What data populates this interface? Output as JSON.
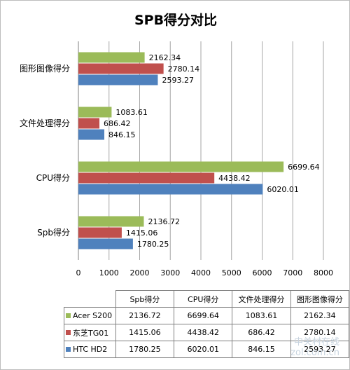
{
  "chart_data": {
    "type": "bar",
    "orientation": "horizontal",
    "title": "SPB得分对比",
    "categories": [
      "Spb得分",
      "CPU得分",
      "文件处理得分",
      "图形图像得分"
    ],
    "series": [
      {
        "name": "Acer S200",
        "color": "#9bbb59",
        "values": [
          2136.72,
          6699.64,
          1083.61,
          2162.34
        ]
      },
      {
        "name": "东芝TG01",
        "color": "#c0504d",
        "values": [
          1415.06,
          4438.42,
          686.42,
          2780.14
        ]
      },
      {
        "name": "HTC HD2",
        "color": "#4f81bd",
        "values": [
          1780.25,
          6020.01,
          846.15,
          2593.27
        ]
      }
    ],
    "value_labels": [
      [
        "2136.72",
        "6699.64",
        "1083.61",
        "2162.34"
      ],
      [
        "1415.06",
        "4438.42",
        "686.42",
        "2780.14"
      ],
      [
        "1780.25",
        "6020.01",
        "846.15",
        "2593.27"
      ]
    ],
    "xlim": [
      0,
      8000
    ],
    "x_ticks": [
      "0",
      "1000",
      "2000",
      "3000",
      "4000",
      "5000",
      "6000",
      "7000",
      "8000"
    ],
    "grid": true,
    "legend": "data-table-below"
  },
  "watermark": {
    "line1": "中关村在线",
    "line2": "zol.com.cn"
  }
}
